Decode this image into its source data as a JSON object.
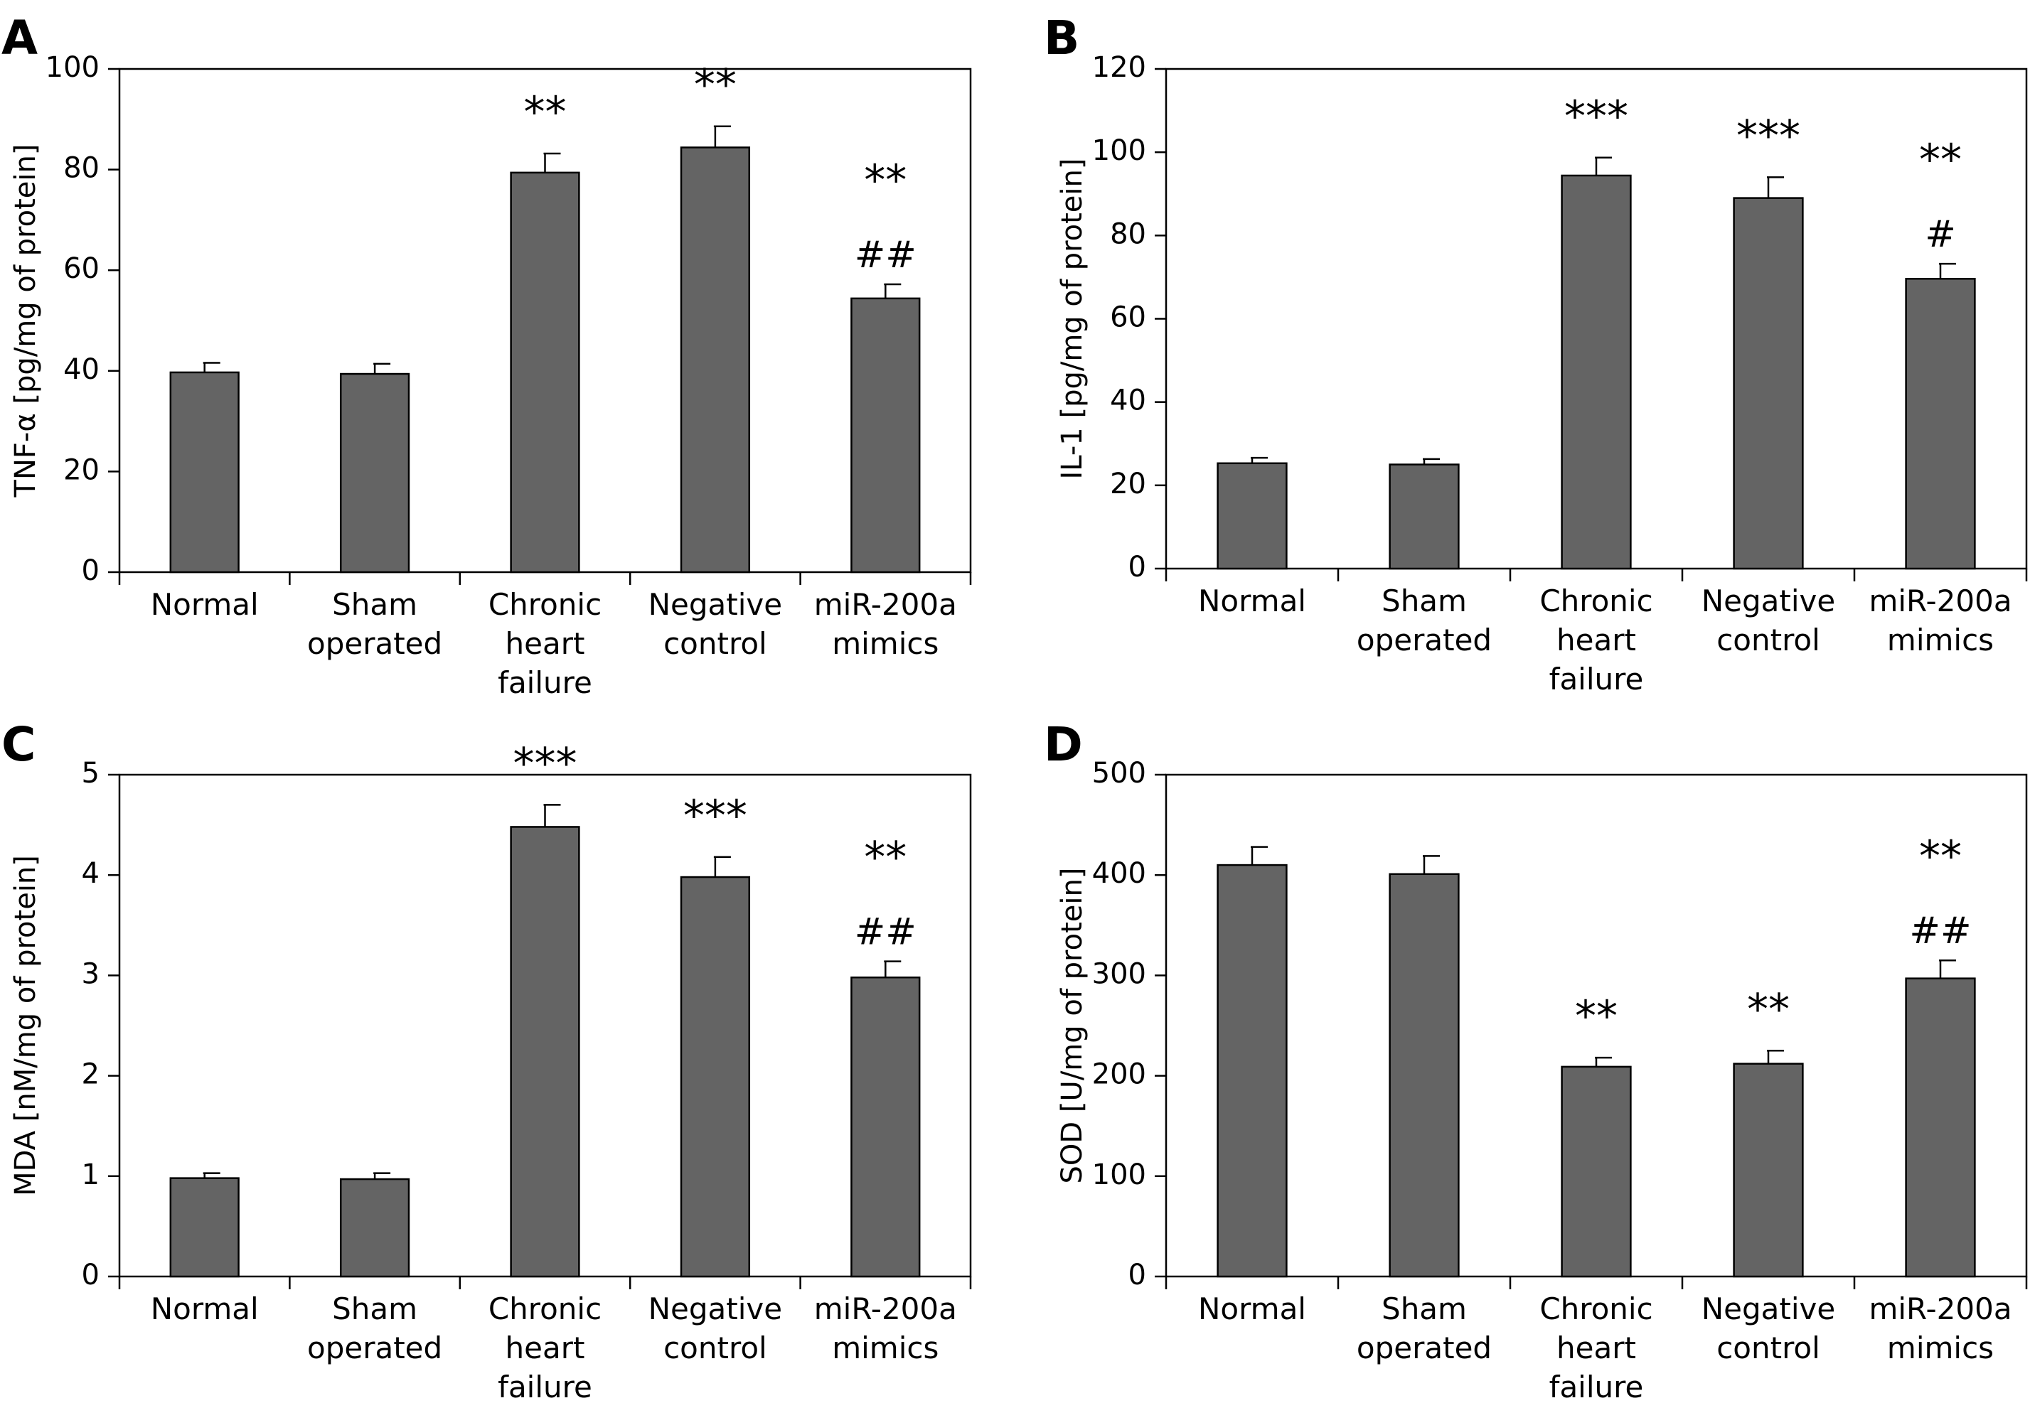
{
  "figure": {
    "category_lines": [
      [
        "Normal"
      ],
      [
        "Sham",
        "operated"
      ],
      [
        "Chronic",
        "heart",
        "failure"
      ],
      [
        "Negative",
        "control"
      ],
      [
        "miR-200a",
        "mimics"
      ]
    ]
  },
  "chart_data": [
    {
      "panel": "A",
      "type": "bar",
      "categories": [
        "Normal",
        "Sham operated",
        "Chronic heart failure",
        "Negative control",
        "miR-200a mimics"
      ],
      "values": [
        39.7,
        39.4,
        79.4,
        84.4,
        54.4
      ],
      "errors": [
        1.9,
        2.0,
        3.8,
        4.2,
        2.8
      ],
      "ylabel": "TNF-α [pg/mg of protein]",
      "ylim": [
        0,
        100
      ],
      "yticks": [
        0,
        20,
        40,
        60,
        80,
        100
      ],
      "bar_color": "#646464",
      "annotations": [
        [],
        [],
        [
          "**"
        ],
        [
          "**"
        ],
        [
          "**",
          "##"
        ]
      ]
    },
    {
      "panel": "B",
      "type": "bar",
      "categories": [
        "Normal",
        "Sham operated",
        "Chronic heart failure",
        "Negative control",
        "miR-200a mimics"
      ],
      "values": [
        25.3,
        25.0,
        94.4,
        89.0,
        69.6
      ],
      "errors": [
        1.3,
        1.3,
        4.3,
        5.0,
        3.6
      ],
      "ylabel": "IL-1 [pg/mg of protein]",
      "ylim": [
        0,
        120
      ],
      "yticks": [
        0,
        20,
        40,
        60,
        80,
        100,
        120
      ],
      "bar_color": "#646464",
      "annotations": [
        [],
        [],
        [
          "***"
        ],
        [
          "***"
        ],
        [
          "**",
          "#"
        ]
      ]
    },
    {
      "panel": "C",
      "type": "bar",
      "categories": [
        "Normal",
        "Sham operated",
        "Chronic heart failure",
        "Negative control",
        "miR-200a mimics"
      ],
      "values": [
        0.98,
        0.97,
        4.48,
        3.98,
        2.98
      ],
      "errors": [
        0.05,
        0.06,
        0.22,
        0.2,
        0.16
      ],
      "ylabel": "MDA [nM/mg of protein]",
      "ylim": [
        0,
        5
      ],
      "yticks": [
        0,
        1,
        2,
        3,
        4,
        5
      ],
      "bar_color": "#646464",
      "annotations": [
        [],
        [],
        [
          "***"
        ],
        [
          "***"
        ],
        [
          "**",
          "##"
        ]
      ]
    },
    {
      "panel": "D",
      "type": "bar",
      "categories": [
        "Normal",
        "Sham operated",
        "Chronic heart failure",
        "Negative control",
        "miR-200a mimics"
      ],
      "values": [
        410,
        401,
        209,
        212,
        297
      ],
      "errors": [
        18,
        18,
        9,
        13,
        18
      ],
      "ylabel": "SOD [U/mg of protein]",
      "ylim": [
        0,
        500
      ],
      "yticks": [
        0,
        100,
        200,
        300,
        400,
        500
      ],
      "bar_color": "#646464",
      "annotations": [
        [],
        [],
        [
          "**"
        ],
        [
          "**"
        ],
        [
          "**",
          "##"
        ]
      ]
    }
  ]
}
